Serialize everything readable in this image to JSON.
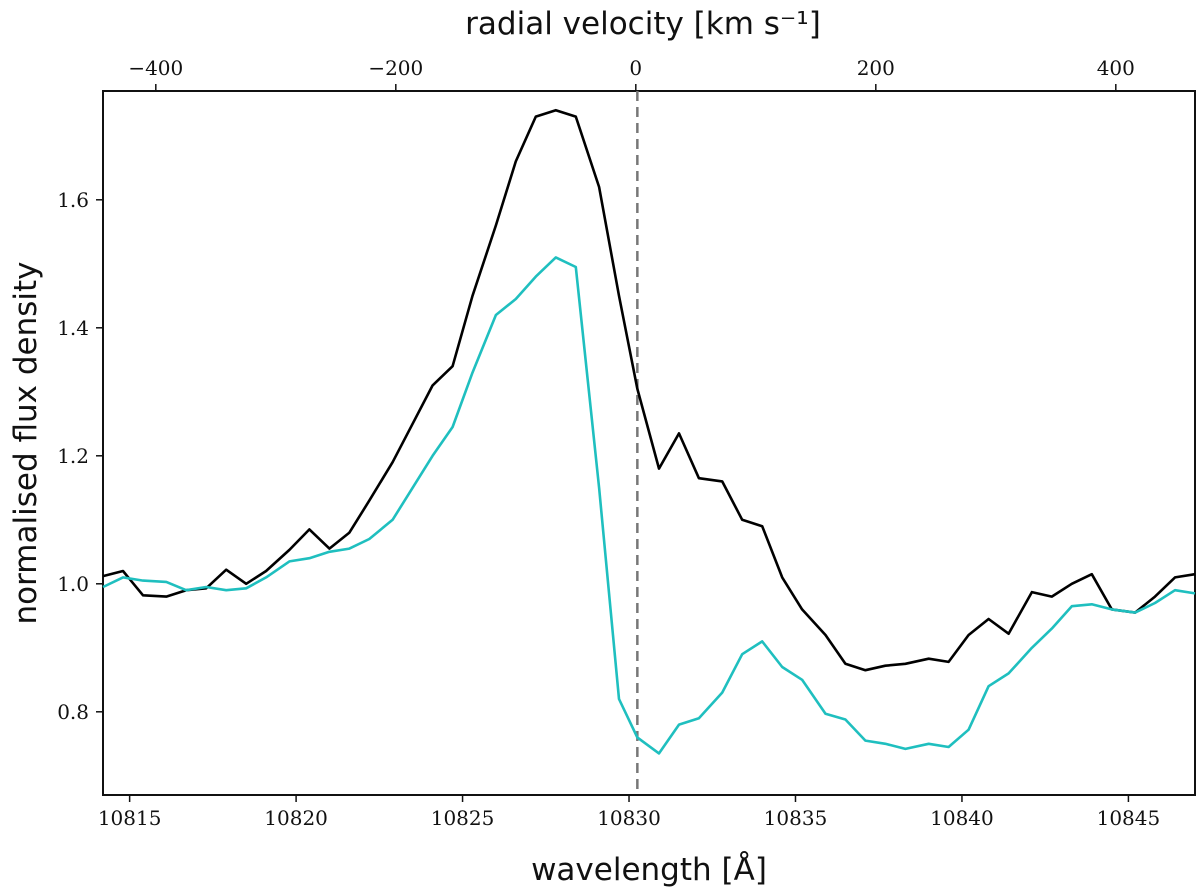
{
  "chart_data": {
    "type": "line",
    "xlabel": "wavelength [Å]",
    "ylabel": "normalised flux density",
    "top_xlabel": "radial velocity [km s⁻¹]",
    "xlim": [
      10814.2,
      10847.0
    ],
    "ylim": [
      0.67,
      1.77
    ],
    "top_xlim": [
      -444,
      466
    ],
    "x_ticks": [
      10815,
      10820,
      10825,
      10830,
      10835,
      10840,
      10845
    ],
    "x_tick_labels": [
      "10815",
      "10820",
      "10825",
      "10830",
      "10835",
      "10840",
      "10845"
    ],
    "y_ticks": [
      0.8,
      1.0,
      1.2,
      1.4,
      1.6
    ],
    "y_tick_labels": [
      "0.8",
      "1.0",
      "1.2",
      "1.4",
      "1.6"
    ],
    "top_ticks": [
      -400,
      -200,
      0,
      200,
      400
    ],
    "top_tick_labels": [
      "−400",
      "−200",
      "0",
      "200",
      "400"
    ],
    "reference_line": {
      "x": 10830.25,
      "style": "dashed",
      "color": "#777777"
    },
    "series": [
      {
        "name": "black",
        "color": "#000000",
        "x": [
          10814.2,
          10814.8,
          10815.4,
          10816.1,
          10816.7,
          10817.3,
          10817.9,
          10818.5,
          10819.1,
          10819.8,
          10820.4,
          10821.0,
          10821.6,
          10822.2,
          10822.9,
          10823.5,
          10824.1,
          10824.7,
          10825.3,
          10826.0,
          10826.6,
          10827.2,
          10827.8,
          10828.4,
          10829.1,
          10829.7,
          10830.25,
          10830.9,
          10831.5,
          10832.1,
          10832.8,
          10833.4,
          10834.0,
          10834.6,
          10835.2,
          10835.9,
          10836.5,
          10837.1,
          10837.7,
          10838.3,
          10839.0,
          10839.6,
          10840.2,
          10840.8,
          10841.4,
          10842.1,
          10842.7,
          10843.3,
          10843.9,
          10844.5,
          10845.2,
          10845.8,
          10846.4,
          10847.0
        ],
        "values": [
          1.012,
          1.02,
          0.982,
          0.98,
          0.99,
          0.993,
          1.022,
          1.0,
          1.02,
          1.053,
          1.085,
          1.055,
          1.08,
          1.13,
          1.19,
          1.25,
          1.31,
          1.34,
          1.45,
          1.56,
          1.66,
          1.73,
          1.74,
          1.73,
          1.62,
          1.45,
          1.305,
          1.18,
          1.235,
          1.165,
          1.16,
          1.1,
          1.09,
          1.01,
          0.96,
          0.92,
          0.875,
          0.865,
          0.872,
          0.875,
          0.883,
          0.878,
          0.92,
          0.945,
          0.922,
          0.987,
          0.98,
          1.0,
          1.015,
          0.96,
          0.955,
          0.98,
          1.01,
          1.015
        ]
      },
      {
        "name": "cyan",
        "color": "#1fbfbf",
        "x": [
          10814.2,
          10814.8,
          10815.4,
          10816.1,
          10816.7,
          10817.3,
          10817.9,
          10818.5,
          10819.1,
          10819.8,
          10820.4,
          10821.0,
          10821.6,
          10822.2,
          10822.9,
          10823.5,
          10824.1,
          10824.7,
          10825.3,
          10826.0,
          10826.6,
          10827.2,
          10827.8,
          10828.4,
          10829.1,
          10829.7,
          10830.25,
          10830.9,
          10831.5,
          10832.1,
          10832.8,
          10833.4,
          10834.0,
          10834.6,
          10835.2,
          10835.9,
          10836.5,
          10837.1,
          10837.7,
          10838.3,
          10839.0,
          10839.6,
          10840.2,
          10840.8,
          10841.4,
          10842.1,
          10842.7,
          10843.3,
          10843.9,
          10844.5,
          10845.2,
          10845.8,
          10846.4,
          10847.0
        ],
        "values": [
          0.995,
          1.01,
          1.005,
          1.003,
          0.99,
          0.995,
          0.99,
          0.993,
          1.01,
          1.035,
          1.04,
          1.05,
          1.055,
          1.07,
          1.1,
          1.15,
          1.2,
          1.245,
          1.33,
          1.42,
          1.445,
          1.48,
          1.51,
          1.495,
          1.15,
          0.82,
          0.76,
          0.735,
          0.78,
          0.79,
          0.83,
          0.89,
          0.91,
          0.87,
          0.85,
          0.797,
          0.788,
          0.755,
          0.75,
          0.742,
          0.75,
          0.745,
          0.772,
          0.84,
          0.86,
          0.9,
          0.93,
          0.965,
          0.968,
          0.96,
          0.955,
          0.97,
          0.99,
          0.985
        ]
      }
    ]
  }
}
